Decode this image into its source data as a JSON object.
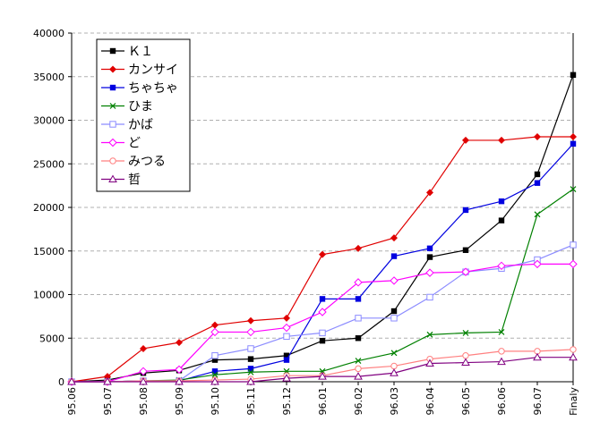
{
  "chart_data": {
    "type": "line",
    "title": "",
    "xlabel": "",
    "ylabel": "",
    "ylim": [
      0,
      40000
    ],
    "yticks": [
      0,
      5000,
      10000,
      15000,
      20000,
      25000,
      30000,
      35000,
      40000
    ],
    "grid": "horizontal dashed",
    "legend_position": "top-left",
    "categories": [
      "95.06",
      "95.07",
      "95.08",
      "95.09",
      "95.10",
      "95.11",
      "95.12",
      "96.01",
      "96.02",
      "96.03",
      "96.04",
      "96.05",
      "96.06",
      "96.07",
      "Finaly"
    ],
    "series": [
      {
        "name": "Ｋ１",
        "color": "#000000",
        "marker": "square-filled",
        "values": [
          0,
          200,
          1000,
          1300,
          2500,
          2600,
          3000,
          4700,
          5000,
          8100,
          14300,
          15100,
          18500,
          23800,
          35200
        ]
      },
      {
        "name": "カンサイ",
        "color": "#e00000",
        "marker": "diamond-filled",
        "values": [
          0,
          600,
          3800,
          4500,
          6500,
          7000,
          7300,
          14600,
          15300,
          16500,
          21700,
          27700,
          27700,
          28100,
          28100
        ]
      },
      {
        "name": "ちゃちゃ",
        "color": "#0000e0",
        "marker": "square-filled",
        "values": [
          0,
          0,
          100,
          100,
          1200,
          1500,
          2500,
          9500,
          9500,
          14400,
          15300,
          19700,
          20700,
          22800,
          27300
        ]
      },
      {
        "name": "ひま",
        "color": "#008000",
        "marker": "x",
        "values": [
          0,
          0,
          100,
          200,
          800,
          1100,
          1200,
          1200,
          2400,
          3300,
          5400,
          5600,
          5700,
          19200,
          22100
        ]
      },
      {
        "name": "かば",
        "color": "#8c8cff",
        "marker": "square-open",
        "values": [
          0,
          0,
          100,
          100,
          3000,
          3800,
          5200,
          5600,
          7300,
          7300,
          9700,
          12600,
          13000,
          14000,
          15700
        ]
      },
      {
        "name": "ど",
        "color": "#ff00ff",
        "marker": "diamond-open",
        "values": [
          0,
          0,
          1200,
          1400,
          5700,
          5700,
          6200,
          8000,
          11400,
          11600,
          12500,
          12600,
          13300,
          13500,
          13500
        ]
      },
      {
        "name": "みつる",
        "color": "#ff8080",
        "marker": "circle-open",
        "values": [
          0,
          0,
          100,
          100,
          200,
          300,
          700,
          700,
          1500,
          1800,
          2600,
          3000,
          3500,
          3500,
          3700
        ]
      },
      {
        "name": "哲",
        "color": "#800080",
        "marker": "triangle-open",
        "values": [
          0,
          0,
          0,
          0,
          0,
          0,
          400,
          600,
          600,
          1000,
          2100,
          2200,
          2300,
          2800,
          2800
        ]
      }
    ]
  }
}
